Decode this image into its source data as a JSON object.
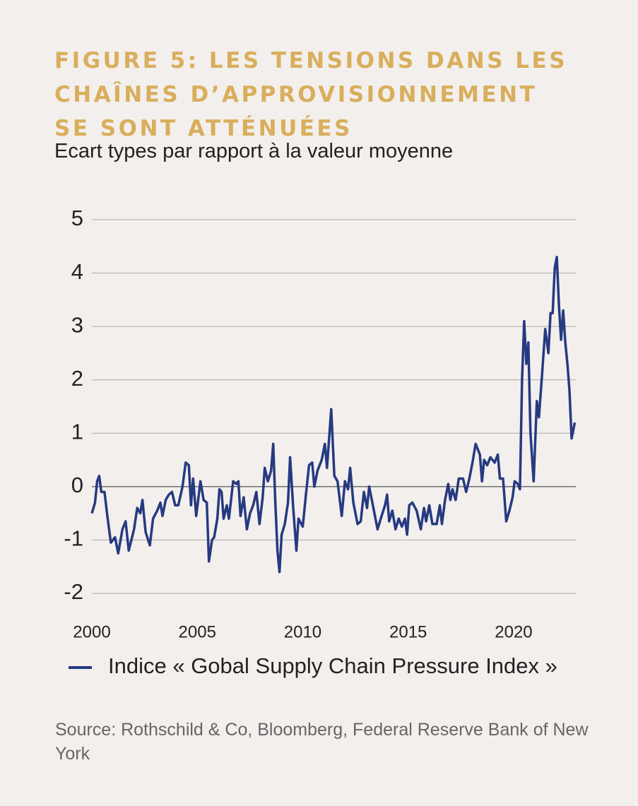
{
  "chart_data": {
    "type": "line",
    "title": "FIGURE 5: LES TENSIONS DANS LES CHAÎNES D’APPROVISIONNEMENT SE SONT ATTÉNUÉES",
    "subtitle": "Ecart types par rapport à la valeur moyenne",
    "source": "Source: Rothschild & Co, Bloomberg, Federal Reserve Bank of New York",
    "xlim": [
      2000,
      2022.95
    ],
    "xticks": [
      2000,
      2005,
      2010,
      2015,
      2020
    ],
    "ylim": [
      -2,
      5
    ],
    "yticks": [
      -2,
      -1,
      0,
      1,
      2,
      3,
      4,
      5
    ],
    "grid": true,
    "x": [
      2000.0,
      2000.15,
      2000.25,
      2000.35,
      2000.45,
      2000.6,
      2000.75,
      2000.9,
      2001.1,
      2001.25,
      2001.45,
      2001.6,
      2001.75,
      2002.0,
      2002.15,
      2002.3,
      2002.4,
      2002.55,
      2002.75,
      2002.9,
      2003.1,
      2003.25,
      2003.35,
      2003.5,
      2003.65,
      2003.8,
      2003.95,
      2004.1,
      2004.3,
      2004.45,
      2004.6,
      2004.7,
      2004.8,
      2004.95,
      2005.15,
      2005.3,
      2005.45,
      2005.55,
      2005.7,
      2005.8,
      2005.95,
      2006.05,
      2006.15,
      2006.25,
      2006.4,
      2006.5,
      2006.7,
      2006.85,
      2006.95,
      2007.05,
      2007.2,
      2007.35,
      2007.5,
      2007.65,
      2007.8,
      2007.95,
      2008.1,
      2008.2,
      2008.35,
      2008.5,
      2008.6,
      2008.7,
      2008.8,
      2008.9,
      2009.0,
      2009.15,
      2009.3,
      2009.4,
      2009.55,
      2009.7,
      2009.8,
      2010.0,
      2010.15,
      2010.3,
      2010.45,
      2010.55,
      2010.7,
      2010.9,
      2011.05,
      2011.15,
      2011.35,
      2011.5,
      2011.65,
      2011.85,
      2012.0,
      2012.15,
      2012.25,
      2012.4,
      2012.6,
      2012.75,
      2012.9,
      2013.05,
      2013.15,
      2013.35,
      2013.55,
      2013.7,
      2013.9,
      2014.0,
      2014.1,
      2014.25,
      2014.4,
      2014.55,
      2014.7,
      2014.85,
      2014.95,
      2015.05,
      2015.2,
      2015.4,
      2015.6,
      2015.75,
      2015.85,
      2016.0,
      2016.15,
      2016.35,
      2016.5,
      2016.6,
      2016.75,
      2016.9,
      2017.0,
      2017.1,
      2017.25,
      2017.4,
      2017.6,
      2017.75,
      2017.9,
      2018.05,
      2018.2,
      2018.4,
      2018.5,
      2018.6,
      2018.75,
      2018.9,
      2019.1,
      2019.25,
      2019.35,
      2019.5,
      2019.65,
      2019.8,
      2019.95,
      2020.05,
      2020.2,
      2020.3,
      2020.4,
      2020.5,
      2020.6,
      2020.7,
      2020.8,
      2020.95,
      2021.1,
      2021.2,
      2021.35,
      2021.5,
      2021.65,
      2021.75,
      2021.85,
      2021.95,
      2022.05,
      2022.15,
      2022.25,
      2022.35,
      2022.45,
      2022.55,
      2022.65,
      2022.75,
      2022.85,
      2022.9
    ],
    "series": [
      {
        "name": "Indice « Gobal Supply Chain Pressure Index »",
        "color": "#263a80",
        "values": [
          -0.5,
          -0.3,
          0.1,
          0.2,
          -0.1,
          -0.1,
          -0.6,
          -1.05,
          -0.95,
          -1.25,
          -0.8,
          -0.65,
          -1.2,
          -0.8,
          -0.4,
          -0.5,
          -0.25,
          -0.85,
          -1.1,
          -0.6,
          -0.45,
          -0.3,
          -0.55,
          -0.25,
          -0.15,
          -0.1,
          -0.35,
          -0.35,
          0.0,
          0.45,
          0.4,
          -0.35,
          0.15,
          -0.55,
          0.1,
          -0.25,
          -0.3,
          -1.4,
          -1.0,
          -0.95,
          -0.6,
          -0.05,
          -0.1,
          -0.6,
          -0.35,
          -0.6,
          0.1,
          0.05,
          0.1,
          -0.55,
          -0.2,
          -0.8,
          -0.5,
          -0.35,
          -0.1,
          -0.7,
          -0.2,
          0.35,
          0.1,
          0.3,
          0.8,
          -0.3,
          -1.2,
          -1.6,
          -0.9,
          -0.7,
          -0.3,
          0.55,
          -0.4,
          -1.2,
          -0.6,
          -0.75,
          -0.15,
          0.4,
          0.45,
          0.0,
          0.3,
          0.5,
          0.8,
          0.35,
          1.45,
          0.2,
          0.1,
          -0.55,
          0.1,
          -0.05,
          0.35,
          -0.3,
          -0.7,
          -0.65,
          -0.1,
          -0.4,
          0.0,
          -0.4,
          -0.8,
          -0.6,
          -0.35,
          -0.15,
          -0.65,
          -0.45,
          -0.8,
          -0.6,
          -0.75,
          -0.6,
          -0.9,
          -0.35,
          -0.3,
          -0.45,
          -0.8,
          -0.4,
          -0.65,
          -0.35,
          -0.7,
          -0.7,
          -0.35,
          -0.7,
          -0.25,
          0.05,
          -0.25,
          -0.05,
          -0.25,
          0.15,
          0.15,
          -0.1,
          0.15,
          0.45,
          0.8,
          0.6,
          0.1,
          0.5,
          0.4,
          0.55,
          0.45,
          0.6,
          0.15,
          0.15,
          -0.65,
          -0.45,
          -0.2,
          0.1,
          0.05,
          -0.05,
          2.0,
          3.1,
          2.3,
          2.7,
          1.0,
          0.1,
          1.6,
          1.3,
          2.1,
          2.95,
          2.5,
          3.25,
          3.25,
          4.1,
          4.3,
          3.4,
          2.75,
          3.3,
          2.7,
          2.3,
          1.8,
          0.9,
          1.1,
          1.2
        ]
      }
    ]
  }
}
